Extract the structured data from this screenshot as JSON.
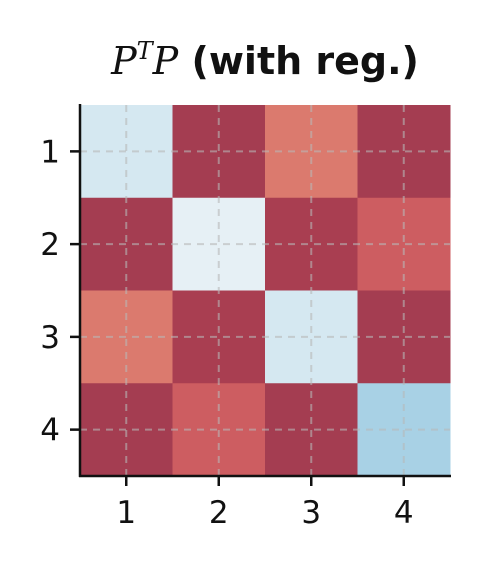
{
  "chart_data": {
    "type": "heatmap",
    "title": {
      "math_base": "P",
      "math_sup": "T",
      "math_base2": "P",
      "suffix": " (with reg.)"
    },
    "x_categories": [
      "1",
      "2",
      "3",
      "4"
    ],
    "y_categories": [
      "1",
      "2",
      "3",
      "4"
    ],
    "values": [
      [
        0.22,
        -0.9,
        -0.62,
        -0.9
      ],
      [
        -0.9,
        0.12,
        -0.88,
        -0.72
      ],
      [
        -0.62,
        -0.88,
        0.22,
        -0.9
      ],
      [
        -0.9,
        -0.72,
        -0.9,
        0.4
      ]
    ],
    "color_range": [
      -1,
      1
    ],
    "colormap": "RdBu",
    "grid": true,
    "grid_style": "dashed",
    "xlabel": "",
    "ylabel": ""
  }
}
